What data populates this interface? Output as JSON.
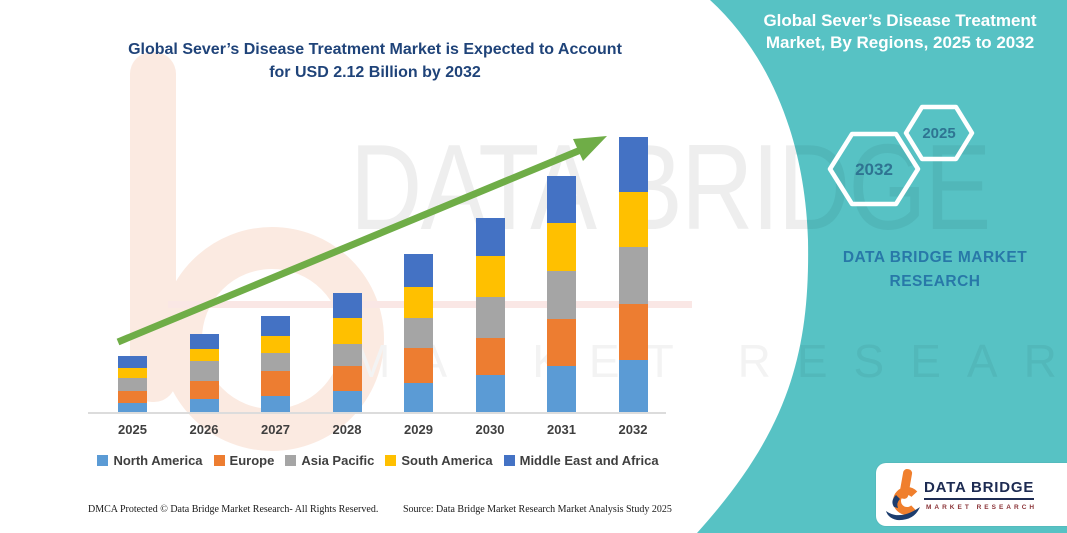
{
  "header": {
    "title_line1": "Global Sever’s Disease Treatment Market is Expected to Account",
    "title_line2": "for USD 2.12 Billion by 2032"
  },
  "panel": {
    "title_line1": "Global Sever’s Disease Treatment",
    "title_line2": "Market, By Regions, 2025 to 2032",
    "hex_large_label": "2032",
    "hex_small_label": "2025",
    "brand_line1": "DATA BRIDGE MARKET",
    "brand_line2": "RESEARCH",
    "accent_color": "#57c2c4"
  },
  "watermark": {
    "big_text": "DATA BRIDGE",
    "sub_text": "MARKET RESEARCH"
  },
  "logo": {
    "name_text": "DATA BRIDGE",
    "sub_text": "MARKET RESEARCH"
  },
  "footer": {
    "left": "DMCA Protected © Data Bridge Market Research-  All Rights Reserved.",
    "source": "Source: Data Bridge Market Research  Market Analysis Study 2025"
  },
  "chart_data": {
    "type": "bar",
    "stacked": true,
    "title": "Global Sever’s Disease Treatment Market, By Regions, 2025 to 2032",
    "unit": "USD Billion",
    "categories": [
      "2025",
      "2026",
      "2027",
      "2028",
      "2029",
      "2030",
      "2031",
      "2032"
    ],
    "series": [
      {
        "name": "North America",
        "color": "#5B9BD5",
        "values": [
          0.08,
          0.11,
          0.13,
          0.17,
          0.23,
          0.29,
          0.36,
          0.41
        ]
      },
      {
        "name": "Europe",
        "color": "#ED7D31",
        "values": [
          0.09,
          0.14,
          0.19,
          0.19,
          0.27,
          0.29,
          0.36,
          0.43
        ]
      },
      {
        "name": "Asia Pacific",
        "color": "#A5A5A5",
        "values": [
          0.1,
          0.15,
          0.14,
          0.17,
          0.23,
          0.31,
          0.37,
          0.44
        ]
      },
      {
        "name": "South America",
        "color": "#FFC000",
        "values": [
          0.08,
          0.09,
          0.13,
          0.2,
          0.24,
          0.32,
          0.37,
          0.42
        ]
      },
      {
        "name": "Middle East and Africa",
        "color": "#4472C4",
        "values": [
          0.09,
          0.12,
          0.16,
          0.19,
          0.25,
          0.29,
          0.36,
          0.42
        ]
      }
    ],
    "totals": [
      0.44,
      0.61,
      0.75,
      0.92,
      1.22,
      1.5,
      1.82,
      2.12
    ],
    "ylim": [
      0,
      2.2
    ],
    "gridlines": false,
    "legend_position": "bottom",
    "trend_arrow": true,
    "trend_arrow_color": "#6FAD47"
  }
}
